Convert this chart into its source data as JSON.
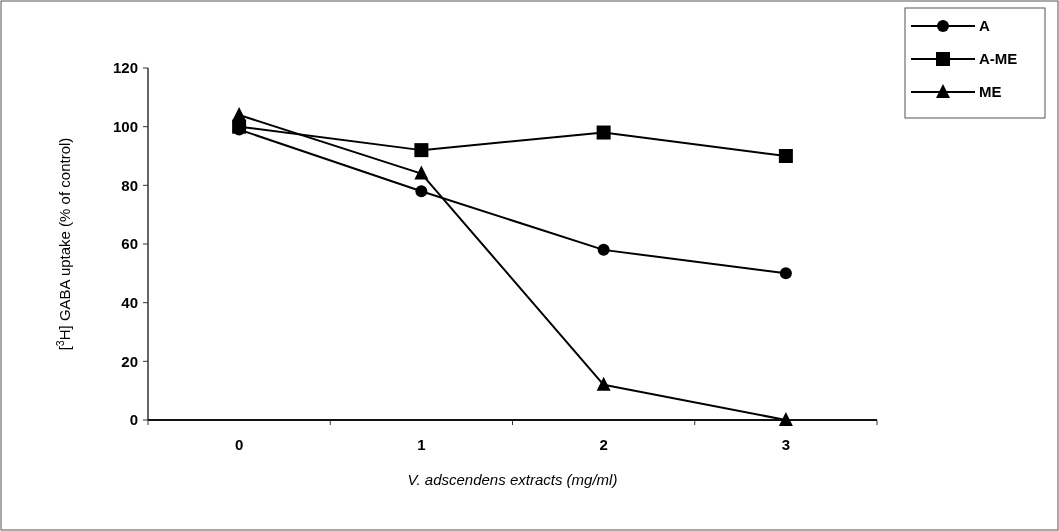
{
  "chart_data": {
    "type": "line",
    "xlabel": "V. adscendens  extracts (mg/ml)",
    "ylabel": "[$^{3}$H] GABA uptake (% of control)",
    "categories": [
      "0",
      "1",
      "2",
      "3"
    ],
    "series": [
      {
        "name": "A",
        "color": "#000000",
        "marker": "circle",
        "values": [
          99,
          78,
          58,
          50
        ]
      },
      {
        "name": "A-ME",
        "color": "#000000",
        "marker": "square",
        "values": [
          100,
          92,
          98,
          90
        ]
      },
      {
        "name": "ME",
        "color": "#000000",
        "marker": "triangle",
        "values": [
          104,
          84,
          12,
          0
        ]
      }
    ],
    "ylim": [
      0,
      120
    ],
    "yticks": [
      0,
      20,
      40,
      60,
      80,
      100,
      120
    ],
    "grid": false,
    "legend": "top right",
    "line_style": "solid"
  }
}
